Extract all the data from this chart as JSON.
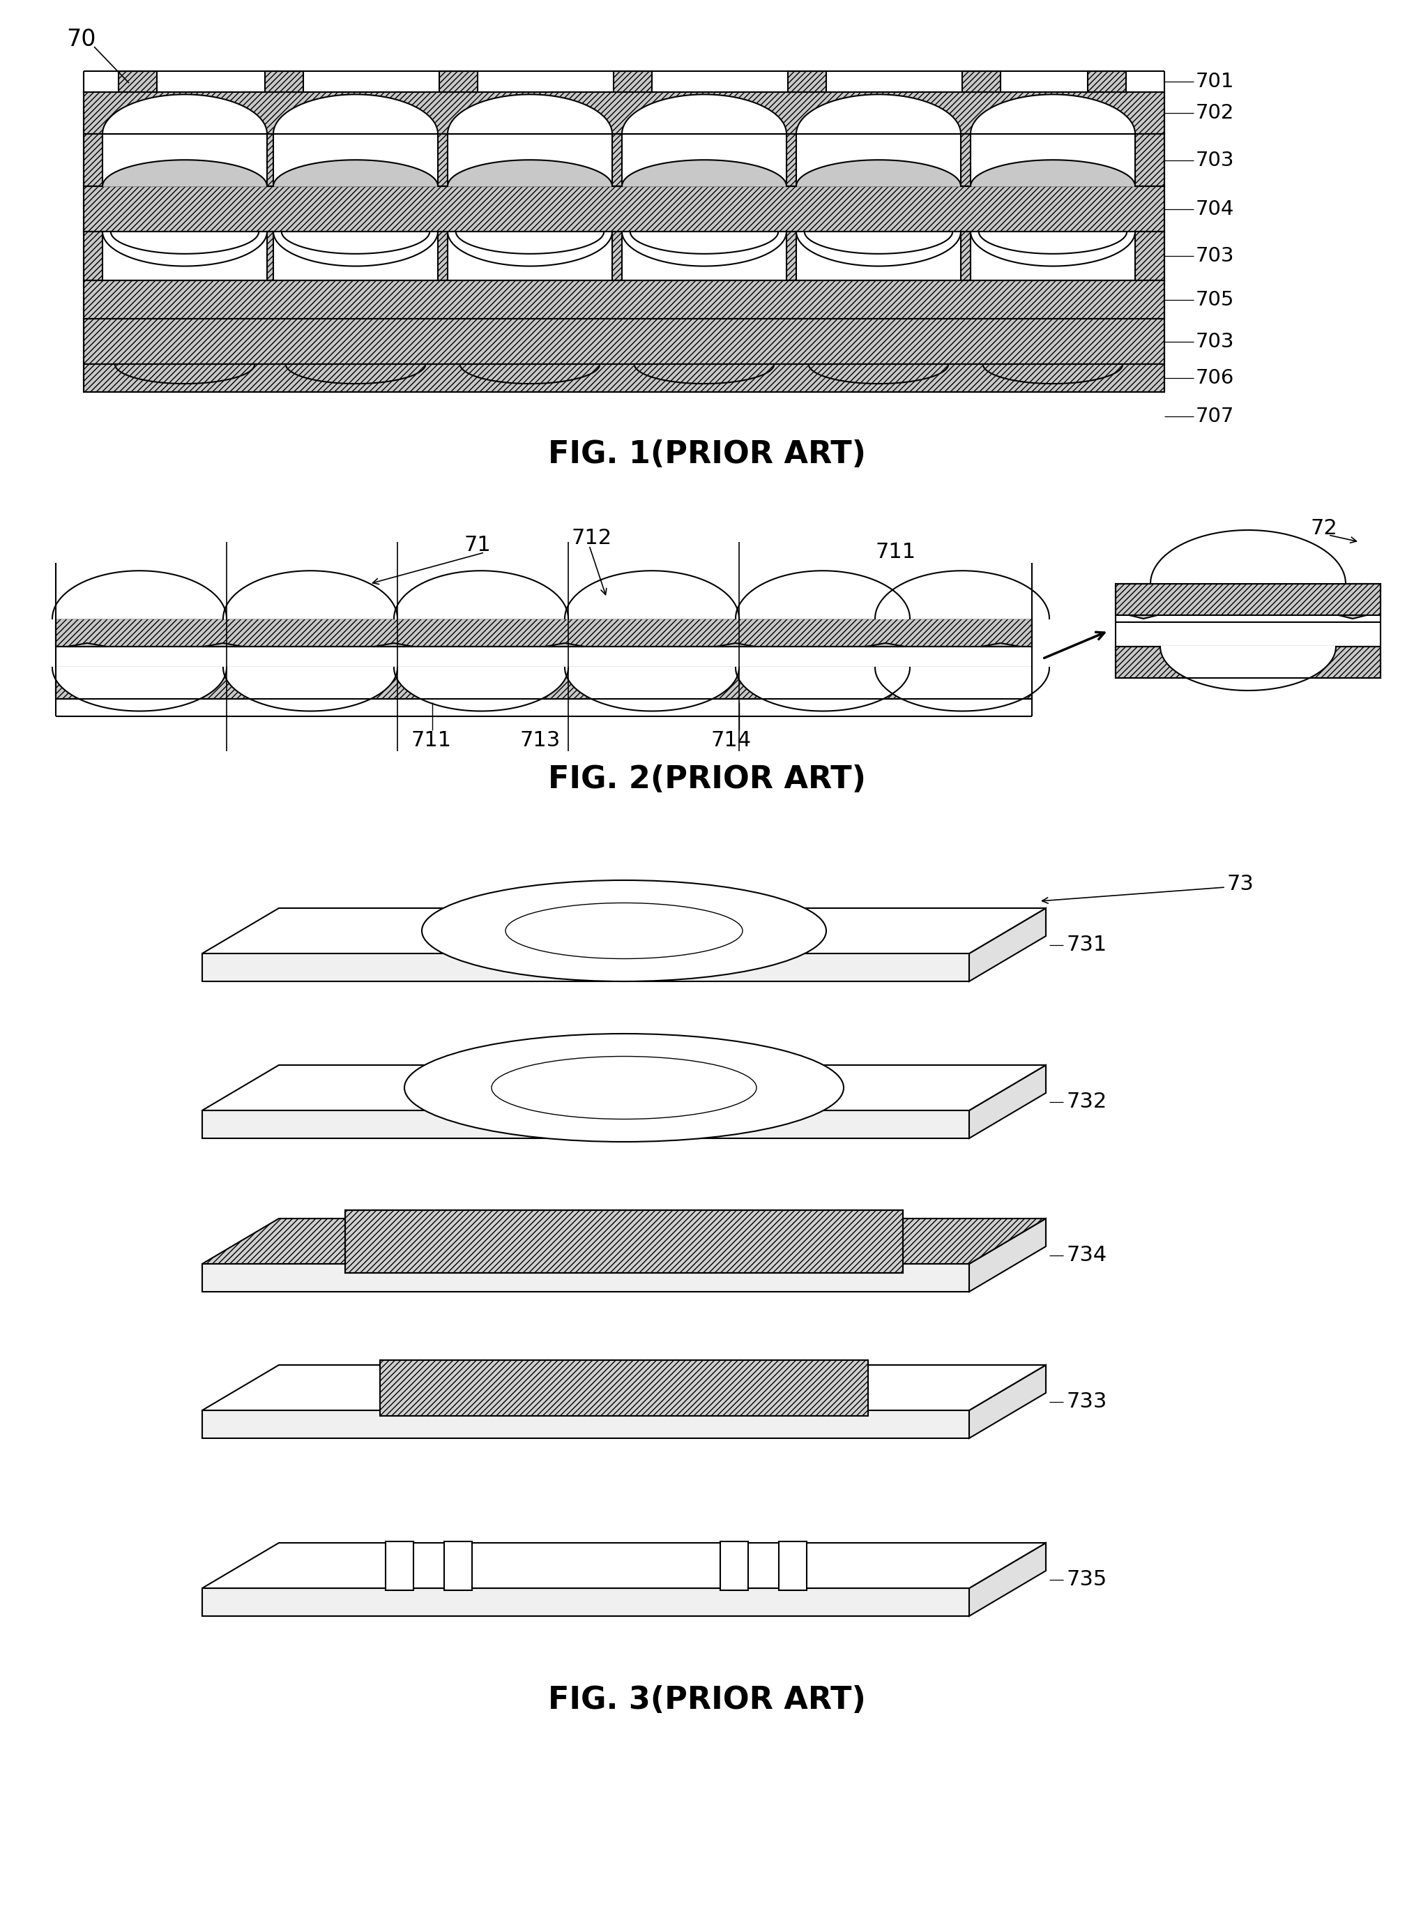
{
  "bg_color": "#ffffff",
  "line_color": "#000000",
  "fig_width": 20.28,
  "fig_height": 27.47,
  "fig1_caption": "FIG. 1(PRIOR ART)",
  "fig2_caption": "FIG. 2(PRIOR ART)",
  "fig3_caption": "FIG. 3(PRIOR ART)",
  "label_70": "70",
  "label_701": "701",
  "label_702": "702",
  "label_703a": "703",
  "label_703b": "703",
  "label_703c": "703",
  "label_704": "704",
  "label_705": "705",
  "label_706": "706",
  "label_707": "707",
  "label_71": "71",
  "label_72": "72",
  "label_711a": "711",
  "label_711b": "711",
  "label_712": "712",
  "label_713": "713",
  "label_714": "714",
  "label_73": "73",
  "label_731": "731",
  "label_732": "732",
  "label_733": "733",
  "label_734": "734",
  "label_735": "735"
}
